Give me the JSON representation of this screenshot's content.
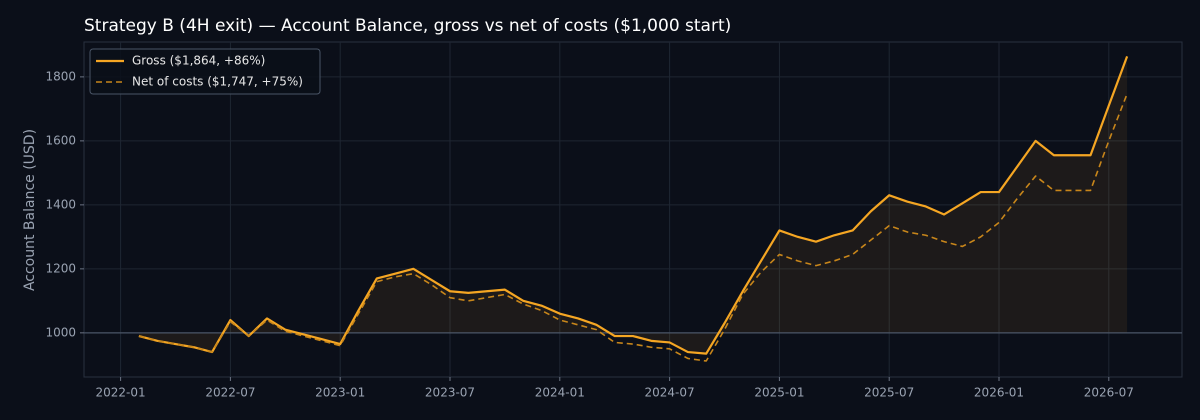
{
  "chart_data": {
    "type": "line",
    "title": "Strategy B (4H exit) — Account Balance, gross vs net of costs ($1,000 start)",
    "y_label": "Account Balance (USD)",
    "x": [
      "2022-02",
      "2022-03",
      "2022-04",
      "2022-05",
      "2022-06",
      "2022-07",
      "2022-08",
      "2022-09",
      "2022-10",
      "2022-11",
      "2022-12",
      "2023-01",
      "2023-02",
      "2023-03",
      "2023-04",
      "2023-05",
      "2023-06",
      "2023-07",
      "2023-08",
      "2023-09",
      "2023-10",
      "2023-11",
      "2023-12",
      "2024-01",
      "2024-02",
      "2024-03",
      "2024-04",
      "2024-05",
      "2024-06",
      "2024-07",
      "2024-08",
      "2024-09",
      "2024-10",
      "2024-11",
      "2024-12",
      "2025-01",
      "2025-02",
      "2025-03",
      "2025-04",
      "2025-05",
      "2025-06",
      "2025-07",
      "2025-08",
      "2025-09",
      "2025-10",
      "2025-11",
      "2025-12",
      "2026-01",
      "2026-02",
      "2026-03",
      "2026-04",
      "2026-05",
      "2026-06",
      "2026-07",
      "2026-08"
    ],
    "series": [
      {
        "name": "Gross ($1,864, +86%)",
        "color": "#f5a623",
        "dash": false,
        "values": [
          990,
          975,
          965,
          955,
          940,
          1040,
          990,
          1045,
          1010,
          995,
          980,
          965,
          1070,
          1170,
          1185,
          1200,
          1165,
          1130,
          1125,
          1130,
          1135,
          1100,
          1085,
          1060,
          1045,
          1025,
          990,
          990,
          975,
          970,
          940,
          935,
          1030,
          1130,
          1225,
          1320,
          1300,
          1285,
          1305,
          1320,
          1380,
          1430,
          1410,
          1395,
          1370,
          1405,
          1440,
          1440,
          1520,
          1600,
          1555,
          1555,
          1555,
          1710,
          1864
        ]
      },
      {
        "name": "Net of costs ($1,747, +75%)",
        "color": "#c8861a",
        "dash": true,
        "values": [
          990,
          975,
          965,
          955,
          940,
          1035,
          990,
          1040,
          1005,
          990,
          975,
          960,
          1060,
          1160,
          1175,
          1185,
          1150,
          1110,
          1100,
          1110,
          1120,
          1090,
          1070,
          1040,
          1025,
          1010,
          970,
          965,
          955,
          950,
          920,
          912,
          1010,
          1120,
          1190,
          1245,
          1225,
          1210,
          1225,
          1245,
          1290,
          1335,
          1315,
          1305,
          1285,
          1270,
          1300,
          1345,
          1420,
          1490,
          1445,
          1445,
          1445,
          1600,
          1747
        ]
      }
    ],
    "hline": 1000,
    "xlim": [
      "2021-11",
      "2026-11"
    ],
    "xticks": [
      "2022-01",
      "2022-07",
      "2023-01",
      "2023-07",
      "2024-01",
      "2024-07",
      "2025-01",
      "2025-07",
      "2026-01",
      "2026-07"
    ],
    "ylim": [
      862,
      1909
    ],
    "yticks": [
      1000,
      1200,
      1400,
      1600,
      1800
    ],
    "grid": true,
    "legend": "upper left"
  }
}
